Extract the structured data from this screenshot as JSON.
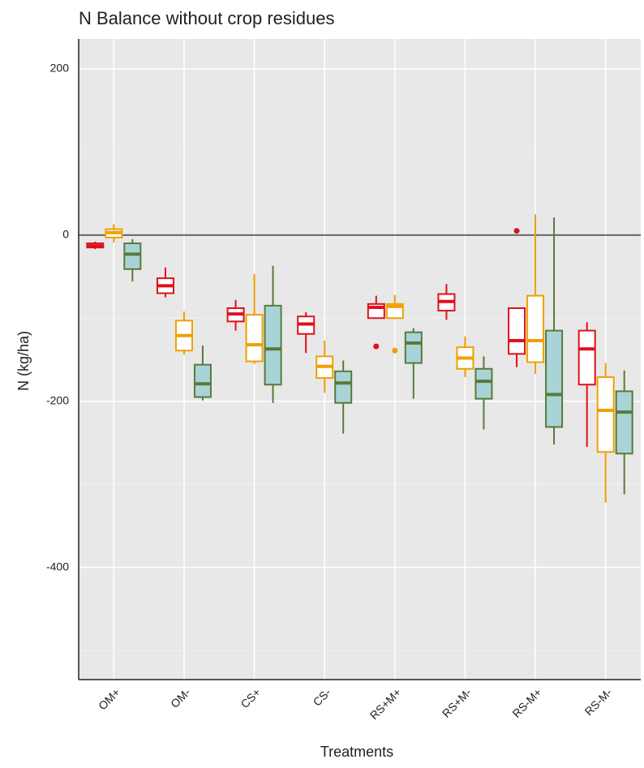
{
  "chart_data": {
    "type": "boxplot",
    "title": "N Balance without crop residues",
    "x_label": "Treatments",
    "y_label": "N (kg/ha)",
    "categories": [
      "OM+",
      "OM-",
      "CS+",
      "CS-",
      "RS+M+",
      "RS+M-",
      "RS-M+",
      "RS-M-"
    ],
    "ylim": [
      -535,
      236
    ],
    "yticks": [
      -400,
      -200,
      0,
      200
    ],
    "minor_yticks": [
      -500,
      -300,
      -100,
      100
    ],
    "hline": 0,
    "grid": true,
    "series": [
      {
        "color": "#e0101a",
        "fill": "#ffffff",
        "min": [
          -17,
          -75,
          -115,
          -142,
          -100,
          -102,
          -159,
          -255
        ],
        "q1": [
          -15,
          -70,
          -104,
          -119,
          -100,
          -91,
          -143,
          -180
        ],
        "median": [
          -13,
          -61,
          -95,
          -107,
          -87,
          -80,
          -127,
          -137
        ],
        "q3": [
          -10,
          -52,
          -88,
          -98,
          -83,
          -71,
          -88,
          -115
        ],
        "max": [
          -8,
          -39,
          -78,
          -93,
          -73,
          -59,
          -88,
          -105
        ],
        "outliers": [
          [],
          [],
          [],
          [],
          [
            -134
          ],
          [],
          [
            5
          ],
          []
        ]
      },
      {
        "color": "#f0a000",
        "fill": "#ffffff",
        "min": [
          -9,
          -144,
          -155,
          -190,
          -100,
          -171,
          -167,
          -322
        ],
        "q1": [
          -3,
          -139,
          -152,
          -172,
          -100,
          -161,
          -153,
          -261
        ],
        "median": [
          3,
          -121,
          -132,
          -158,
          -86,
          -148,
          -127,
          -211
        ],
        "q3": [
          7,
          -103,
          -96,
          -146,
          -83,
          -135,
          -73,
          -171
        ],
        "max": [
          13,
          -92,
          -47,
          -127,
          -72,
          -122,
          25,
          -154
        ],
        "outliers": [
          [],
          [],
          [],
          [],
          [
            -139
          ],
          [],
          [],
          []
        ]
      },
      {
        "color": "#5a7a3a",
        "fill": "#a8d4d8",
        "min": [
          -56,
          -199,
          -202,
          -239,
          -197,
          -234,
          -252,
          -312
        ],
        "q1": [
          -41,
          -195,
          -180,
          -202,
          -154,
          -197,
          -231,
          -263
        ],
        "median": [
          -23,
          -179,
          -137,
          -178,
          -130,
          -176,
          -192,
          -213
        ],
        "q3": [
          -10,
          -156,
          -85,
          -164,
          -117,
          -161,
          -115,
          -188
        ],
        "max": [
          -5,
          -133,
          -37,
          -151,
          -112,
          -146,
          21,
          -163
        ],
        "outliers": [
          [],
          [],
          [],
          [],
          [],
          [],
          [],
          []
        ]
      }
    ]
  }
}
